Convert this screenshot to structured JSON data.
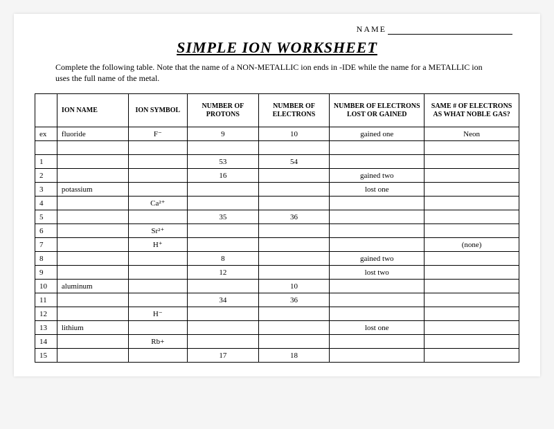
{
  "header": {
    "name_label": "NAME",
    "title": "SIMPLE ION WORKSHEET",
    "instructions": "Complete the following table.  Note that the name of a NON-METALLIC ion ends in -IDE while the name for a METALLIC ion uses the full name of the metal."
  },
  "table": {
    "columns": [
      "",
      "ION NAME",
      "ION SYMBOL",
      "NUMBER OF PROTONS",
      "NUMBER OF ELECTRONS",
      "NUMBER OF ELECTRONS LOST OR GAINED",
      "SAME # OF ELECTRONS AS WHAT NOBLE GAS?"
    ],
    "rows": [
      {
        "n": "ex",
        "name": "fluoride",
        "sym": "F⁻",
        "p": "9",
        "e": "10",
        "lg": "gained one",
        "ng": "Neon"
      },
      {
        "n": "",
        "name": "",
        "sym": "",
        "p": "",
        "e": "",
        "lg": "",
        "ng": ""
      },
      {
        "n": "1",
        "name": "",
        "sym": "",
        "p": "53",
        "e": "54",
        "lg": "",
        "ng": ""
      },
      {
        "n": "2",
        "name": "",
        "sym": "",
        "p": "16",
        "e": "",
        "lg": "gained two",
        "ng": ""
      },
      {
        "n": "3",
        "name": "potassium",
        "sym": "",
        "p": "",
        "e": "",
        "lg": "lost one",
        "ng": ""
      },
      {
        "n": "4",
        "name": "",
        "sym": "Ca²⁺",
        "p": "",
        "e": "",
        "lg": "",
        "ng": ""
      },
      {
        "n": "5",
        "name": "",
        "sym": "",
        "p": "35",
        "e": "36",
        "lg": "",
        "ng": ""
      },
      {
        "n": "6",
        "name": "",
        "sym": "Sr²⁺",
        "p": "",
        "e": "",
        "lg": "",
        "ng": ""
      },
      {
        "n": "7",
        "name": "",
        "sym": "H⁺",
        "p": "",
        "e": "",
        "lg": "",
        "ng": "(none)"
      },
      {
        "n": "8",
        "name": "",
        "sym": "",
        "p": "8",
        "e": "",
        "lg": "gained two",
        "ng": ""
      },
      {
        "n": "9",
        "name": "",
        "sym": "",
        "p": "12",
        "e": "",
        "lg": "lost two",
        "ng": ""
      },
      {
        "n": "10",
        "name": "aluminum",
        "sym": "",
        "p": "",
        "e": "10",
        "lg": "",
        "ng": ""
      },
      {
        "n": "11",
        "name": "",
        "sym": "",
        "p": "34",
        "e": "36",
        "lg": "",
        "ng": ""
      },
      {
        "n": "12",
        "name": "",
        "sym": "H⁻",
        "p": "",
        "e": "",
        "lg": "",
        "ng": ""
      },
      {
        "n": "13",
        "name": "lithium",
        "sym": "",
        "p": "",
        "e": "",
        "lg": "lost one",
        "ng": ""
      },
      {
        "n": "14",
        "name": "",
        "sym": "Rb+",
        "p": "",
        "e": "",
        "lg": "",
        "ng": ""
      },
      {
        "n": "15",
        "name": "",
        "sym": "",
        "p": "17",
        "e": "18",
        "lg": "",
        "ng": ""
      }
    ]
  }
}
